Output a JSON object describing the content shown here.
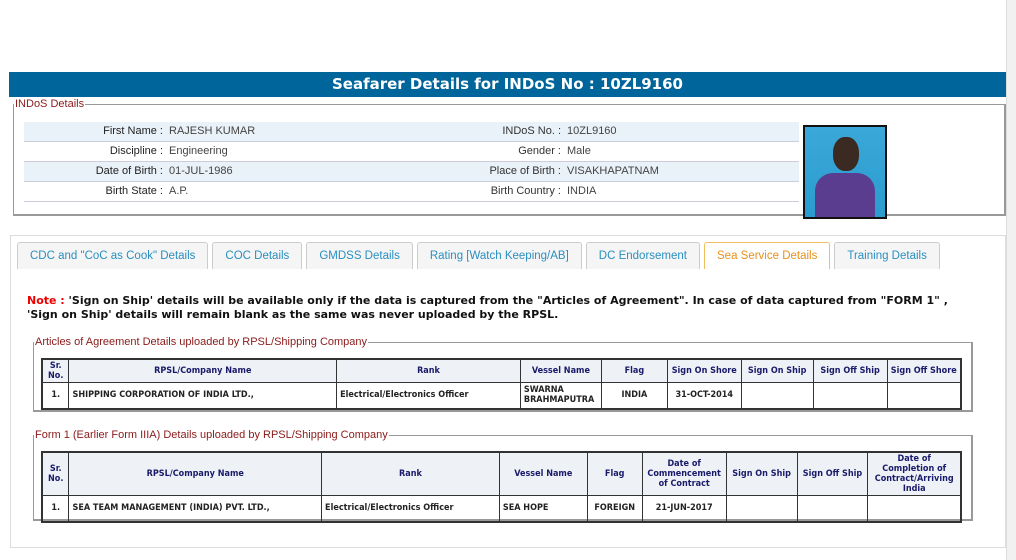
{
  "title": "Seafarer Details for INDoS No : 10ZL9160",
  "indos": {
    "legend": "INDoS Details",
    "rows": [
      {
        "l1": "First Name :",
        "v1": "RAJESH KUMAR",
        "l2": "INDoS No. :",
        "v2": "10ZL9160"
      },
      {
        "l1": "Discipline :",
        "v1": "Engineering",
        "l2": "Gender :",
        "v2": "Male"
      },
      {
        "l1": "Date of Birth :",
        "v1": "01-JUL-1986",
        "l2": "Place of Birth :",
        "v2": "VISAKHAPATNAM"
      },
      {
        "l1": "Birth State :",
        "v1": "A.P.",
        "l2": "Birth Country :",
        "v2": "INDIA"
      }
    ]
  },
  "tabs": [
    "CDC and \"CoC as Cook\" Details",
    "COC Details",
    "GMDSS Details",
    "Rating [Watch Keeping/AB]",
    "DC Endorsement",
    "Sea Service Details",
    "Training Details"
  ],
  "active_tab": "Sea Service Details",
  "note": {
    "label": "Note :",
    "text": " 'Sign on Ship' details will be available only if the data is captured from the \"Articles of Agreement\". In case of data captured from \"FORM 1\" , 'Sign on Ship' details will remain blank as the same was never uploaded by the RPSL."
  },
  "aoa": {
    "legend": "Articles of Agreement Details uploaded by RPSL/Shipping Company",
    "headers": [
      "Sr. No.",
      "RPSL/Company Name",
      "Rank",
      "Vessel Name",
      "Flag",
      "Sign On Shore",
      "Sign On Ship",
      "Sign Off Ship",
      "Sign Off Shore"
    ],
    "rows": [
      [
        "1.",
        "SHIPPING CORPORATION OF INDIA LTD.,",
        "Electrical/Electronics Officer",
        "SWARNA BRAHMAPUTRA",
        "INDIA",
        "31-OCT-2014",
        "",
        "",
        ""
      ]
    ]
  },
  "form1": {
    "legend": "Form 1 (Earlier Form IIIA) Details uploaded by RPSL/Shipping Company",
    "headers": [
      "Sr. No.",
      "RPSL/Company Name",
      "Rank",
      "Vessel Name",
      "Flag",
      "Date of Commencement of Contract",
      "Sign On Ship",
      "Sign Off Ship",
      "Date of Completion of Contract/Arriving India"
    ],
    "rows": [
      [
        "1.",
        "SEA TEAM MANAGEMENT (INDIA) PVT. LTD.,",
        "Electrical/Electronics Officer",
        "SEA HOPE",
        "FOREIGN",
        "21-JUN-2017",
        "",
        "",
        ""
      ]
    ]
  },
  "colors": {
    "title_bar": "#00659a",
    "legend": "#8b1a1a",
    "tab_text": "#2a8fc0",
    "active_tab": "#e8901a",
    "note_label": "#e00000"
  }
}
